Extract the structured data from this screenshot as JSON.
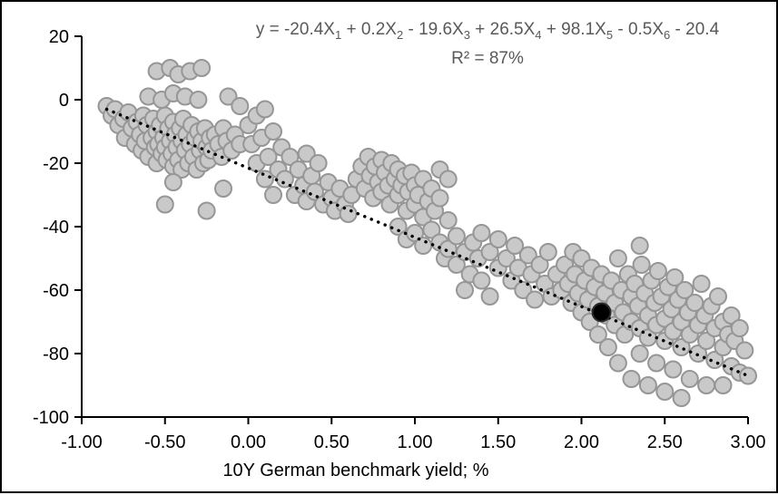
{
  "chart_data": {
    "type": "scatter",
    "equation_text": "y = -20.4X1 + 0.2X2 - 19.6X3 + 26.5X4 + 98.1X5 - 0.5X6 - 20.4",
    "equation_segments": [
      {
        "t": "y = -20.4X",
        "sub": "1"
      },
      {
        "t": " + 0.2X",
        "sub": "2"
      },
      {
        "t": " - 19.6X",
        "sub": "3"
      },
      {
        "t": " + 26.5X",
        "sub": "4"
      },
      {
        "t": " + 98.1X",
        "sub": "5"
      },
      {
        "t": " - 0.5X",
        "sub": "6"
      },
      {
        "t": " - 20.4",
        "sub": ""
      }
    ],
    "r_squared": "R² = 87%",
    "xlabel": "10Y German benchmark yield; %",
    "ylabel": "",
    "xlim": [
      -1.0,
      3.0
    ],
    "ylim": [
      -100,
      20
    ],
    "grid": false,
    "legend": "none",
    "x_ticks": [
      {
        "value": -1.0,
        "label": "-1.00"
      },
      {
        "value": -0.5,
        "label": "-0.50"
      },
      {
        "value": 0.0,
        "label": "0.00"
      },
      {
        "value": 0.5,
        "label": "0.50"
      },
      {
        "value": 1.0,
        "label": "1.00"
      },
      {
        "value": 1.5,
        "label": "1.50"
      },
      {
        "value": 2.0,
        "label": "2.00"
      },
      {
        "value": 2.5,
        "label": "2.50"
      },
      {
        "value": 3.0,
        "label": "3.00"
      }
    ],
    "y_ticks": [
      {
        "value": 20,
        "label": "20"
      },
      {
        "value": 0,
        "label": "0"
      },
      {
        "value": -20,
        "label": "-20"
      },
      {
        "value": -40,
        "label": "-40"
      },
      {
        "value": -60,
        "label": "-60"
      },
      {
        "value": -80,
        "label": "-80"
      },
      {
        "value": -100,
        "label": "-100"
      }
    ],
    "trendline": {
      "style": "dotted",
      "x1": -0.85,
      "y1": -3,
      "x2": 3.0,
      "y2": -87
    },
    "highlight_point": {
      "x": 2.12,
      "y": -67
    },
    "style": {
      "point_fill": "#c9c9c9",
      "point_stroke": "#969696",
      "trend_color": "#000000",
      "highlight_fill": "#000000",
      "equation_color": "#595959"
    },
    "points": [
      [
        -0.85,
        -2
      ],
      [
        -0.82,
        -5
      ],
      [
        -0.8,
        -3
      ],
      [
        -0.78,
        -8
      ],
      [
        -0.75,
        -6
      ],
      [
        -0.74,
        -12
      ],
      [
        -0.72,
        -4
      ],
      [
        -0.7,
        -9
      ],
      [
        -0.68,
        -14
      ],
      [
        -0.67,
        -7
      ],
      [
        -0.65,
        -11
      ],
      [
        -0.64,
        -16
      ],
      [
        -0.63,
        -5
      ],
      [
        -0.62,
        -13
      ],
      [
        -0.61,
        -8
      ],
      [
        -0.6,
        -18
      ],
      [
        -0.58,
        -12
      ],
      [
        -0.57,
        -6
      ],
      [
        -0.56,
        -15
      ],
      [
        -0.55,
        -10
      ],
      [
        -0.55,
        -20
      ],
      [
        -0.54,
        -14
      ],
      [
        -0.53,
        -8
      ],
      [
        -0.52,
        -17
      ],
      [
        -0.51,
        -12
      ],
      [
        -0.5,
        -5
      ],
      [
        -0.5,
        -15
      ],
      [
        -0.49,
        -19
      ],
      [
        -0.48,
        -9
      ],
      [
        -0.47,
        -13
      ],
      [
        -0.46,
        -17
      ],
      [
        -0.45,
        -7
      ],
      [
        -0.45,
        -21
      ],
      [
        -0.44,
        -11
      ],
      [
        -0.43,
        -15
      ],
      [
        -0.42,
        -19
      ],
      [
        -0.41,
        -9
      ],
      [
        -0.4,
        -13
      ],
      [
        -0.4,
        -22
      ],
      [
        -0.39,
        -6
      ],
      [
        -0.38,
        -16
      ],
      [
        -0.37,
        -11
      ],
      [
        -0.36,
        -20
      ],
      [
        -0.35,
        -14
      ],
      [
        -0.34,
        -8
      ],
      [
        -0.33,
        -18
      ],
      [
        -0.32,
        -12
      ],
      [
        -0.31,
        -22
      ],
      [
        -0.3,
        -10
      ],
      [
        -0.29,
        -16
      ],
      [
        -0.28,
        -13
      ],
      [
        -0.27,
        -20
      ],
      [
        -0.26,
        -9
      ],
      [
        -0.25,
        -15
      ],
      [
        -0.24,
        -19
      ],
      [
        -0.23,
        -12
      ],
      [
        -0.22,
        -16
      ],
      [
        -0.2,
        -11
      ],
      [
        -0.18,
        -14
      ],
      [
        -0.16,
        -18
      ],
      [
        -0.15,
        -9
      ],
      [
        -0.13,
        -13
      ],
      [
        -0.1,
        -16
      ],
      [
        -0.08,
        -11
      ],
      [
        -0.05,
        -14
      ],
      [
        -0.55,
        9
      ],
      [
        -0.47,
        10
      ],
      [
        -0.42,
        8
      ],
      [
        -0.35,
        9
      ],
      [
        -0.28,
        10
      ],
      [
        -0.6,
        1
      ],
      [
        -0.52,
        0
      ],
      [
        -0.45,
        2
      ],
      [
        -0.38,
        1
      ],
      [
        -0.3,
        0
      ],
      [
        -0.12,
        1
      ],
      [
        -0.05,
        -2
      ],
      [
        -0.5,
        -33
      ],
      [
        -0.45,
        -26
      ],
      [
        -0.25,
        -35
      ],
      [
        -0.15,
        -28
      ],
      [
        0.0,
        -8
      ],
      [
        0.02,
        -14
      ],
      [
        0.05,
        -20
      ],
      [
        0.05,
        -5
      ],
      [
        0.08,
        -12
      ],
      [
        0.1,
        -25
      ],
      [
        0.1,
        -3
      ],
      [
        0.12,
        -18
      ],
      [
        0.15,
        -10
      ],
      [
        0.15,
        -30
      ],
      [
        0.18,
        -22
      ],
      [
        0.2,
        -15
      ],
      [
        0.22,
        -25
      ],
      [
        0.25,
        -18
      ],
      [
        0.28,
        -30
      ],
      [
        0.3,
        -22
      ],
      [
        0.33,
        -27
      ],
      [
        0.35,
        -17
      ],
      [
        0.35,
        -32
      ],
      [
        0.38,
        -24
      ],
      [
        0.4,
        -29
      ],
      [
        0.42,
        -20
      ],
      [
        0.45,
        -33
      ],
      [
        0.48,
        -26
      ],
      [
        0.5,
        -31
      ],
      [
        0.52,
        -35
      ],
      [
        0.55,
        -28
      ],
      [
        0.58,
        -33
      ],
      [
        0.6,
        -36
      ],
      [
        0.62,
        -30
      ],
      [
        0.65,
        -25
      ],
      [
        0.68,
        -21
      ],
      [
        0.7,
        -28
      ],
      [
        0.72,
        -18
      ],
      [
        0.73,
        -24
      ],
      [
        0.75,
        -31
      ],
      [
        0.76,
        -21
      ],
      [
        0.78,
        -26
      ],
      [
        0.8,
        -19
      ],
      [
        0.8,
        -29
      ],
      [
        0.82,
        -23
      ],
      [
        0.84,
        -27
      ],
      [
        0.85,
        -33
      ],
      [
        0.86,
        -20
      ],
      [
        0.88,
        -25
      ],
      [
        0.9,
        -30
      ],
      [
        0.9,
        -22
      ],
      [
        0.92,
        -27
      ],
      [
        0.94,
        -24
      ],
      [
        0.95,
        -35
      ],
      [
        0.96,
        -29
      ],
      [
        0.98,
        -23
      ],
      [
        1.0,
        -27
      ],
      [
        1.0,
        -33
      ],
      [
        1.02,
        -30
      ],
      [
        1.05,
        -25
      ],
      [
        1.05,
        -37
      ],
      [
        1.08,
        -32
      ],
      [
        1.1,
        -28
      ],
      [
        1.12,
        -35
      ],
      [
        1.15,
        -31
      ],
      [
        1.15,
        -22
      ],
      [
        1.2,
        -25
      ],
      [
        0.9,
        -40
      ],
      [
        0.95,
        -44
      ],
      [
        1.0,
        -42
      ],
      [
        1.05,
        -46
      ],
      [
        1.1,
        -41
      ],
      [
        1.15,
        -45
      ],
      [
        1.18,
        -50
      ],
      [
        1.2,
        -38
      ],
      [
        1.2,
        -47
      ],
      [
        1.25,
        -43
      ],
      [
        1.25,
        -52
      ],
      [
        1.3,
        -48
      ],
      [
        1.3,
        -60
      ],
      [
        1.33,
        -55
      ],
      [
        1.35,
        -45
      ],
      [
        1.38,
        -50
      ],
      [
        1.4,
        -42
      ],
      [
        1.4,
        -57
      ],
      [
        1.45,
        -48
      ],
      [
        1.45,
        -62
      ],
      [
        1.5,
        -44
      ],
      [
        1.5,
        -53
      ],
      [
        1.55,
        -50
      ],
      [
        1.58,
        -57
      ],
      [
        1.6,
        -46
      ],
      [
        1.62,
        -53
      ],
      [
        1.65,
        -60
      ],
      [
        1.68,
        -49
      ],
      [
        1.7,
        -55
      ],
      [
        1.72,
        -63
      ],
      [
        1.75,
        -52
      ],
      [
        1.78,
        -58
      ],
      [
        1.8,
        -48
      ],
      [
        1.82,
        -62
      ],
      [
        1.85,
        -55
      ],
      [
        1.88,
        -60
      ],
      [
        1.9,
        -52
      ],
      [
        1.92,
        -58
      ],
      [
        1.94,
        -64
      ],
      [
        1.95,
        -48
      ],
      [
        1.96,
        -55
      ],
      [
        1.98,
        -61
      ],
      [
        2.0,
        -50
      ],
      [
        2.0,
        -67
      ],
      [
        2.02,
        -57
      ],
      [
        2.04,
        -63
      ],
      [
        2.05,
        -70
      ],
      [
        2.06,
        -53
      ],
      [
        2.08,
        -59
      ],
      [
        2.1,
        -65
      ],
      [
        2.1,
        -74
      ],
      [
        2.12,
        -55
      ],
      [
        2.14,
        -61
      ],
      [
        2.15,
        -68
      ],
      [
        2.16,
        -78
      ],
      [
        2.18,
        -57
      ],
      [
        2.2,
        -64
      ],
      [
        2.2,
        -71
      ],
      [
        2.22,
        -50
      ],
      [
        2.22,
        -83
      ],
      [
        2.24,
        -60
      ],
      [
        2.25,
        -67
      ],
      [
        2.26,
        -74
      ],
      [
        2.28,
        -55
      ],
      [
        2.3,
        -62
      ],
      [
        2.3,
        -70
      ],
      [
        2.3,
        -88
      ],
      [
        2.32,
        -58
      ],
      [
        2.34,
        -65
      ],
      [
        2.35,
        -72
      ],
      [
        2.35,
        -80
      ],
      [
        2.35,
        -46
      ],
      [
        2.36,
        -52
      ],
      [
        2.38,
        -61
      ],
      [
        2.4,
        -68
      ],
      [
        2.4,
        -75
      ],
      [
        2.4,
        -90
      ],
      [
        2.42,
        -57
      ],
      [
        2.44,
        -64
      ],
      [
        2.45,
        -71
      ],
      [
        2.45,
        -83
      ],
      [
        2.46,
        -54
      ],
      [
        2.48,
        -62
      ],
      [
        2.5,
        -69
      ],
      [
        2.5,
        -76
      ],
      [
        2.5,
        -92
      ],
      [
        2.52,
        -59
      ],
      [
        2.54,
        -66
      ],
      [
        2.55,
        -73
      ],
      [
        2.55,
        -85
      ],
      [
        2.56,
        -56
      ],
      [
        2.58,
        -63
      ],
      [
        2.6,
        -70
      ],
      [
        2.6,
        -78
      ],
      [
        2.6,
        -94
      ],
      [
        2.62,
        -60
      ],
      [
        2.64,
        -67
      ],
      [
        2.65,
        -74
      ],
      [
        2.65,
        -88
      ],
      [
        2.68,
        -64
      ],
      [
        2.7,
        -71
      ],
      [
        2.7,
        -80
      ],
      [
        2.72,
        -58
      ],
      [
        2.74,
        -68
      ],
      [
        2.75,
        -76
      ],
      [
        2.75,
        -90
      ],
      [
        2.78,
        -65
      ],
      [
        2.8,
        -72
      ],
      [
        2.8,
        -82
      ],
      [
        2.82,
        -62
      ],
      [
        2.85,
        -70
      ],
      [
        2.85,
        -78
      ],
      [
        2.85,
        -90
      ],
      [
        2.88,
        -74
      ],
      [
        2.9,
        -68
      ],
      [
        2.9,
        -84
      ],
      [
        2.92,
        -76
      ],
      [
        2.95,
        -72
      ],
      [
        2.95,
        -86
      ],
      [
        2.98,
        -79
      ],
      [
        3.0,
        -87
      ]
    ]
  }
}
